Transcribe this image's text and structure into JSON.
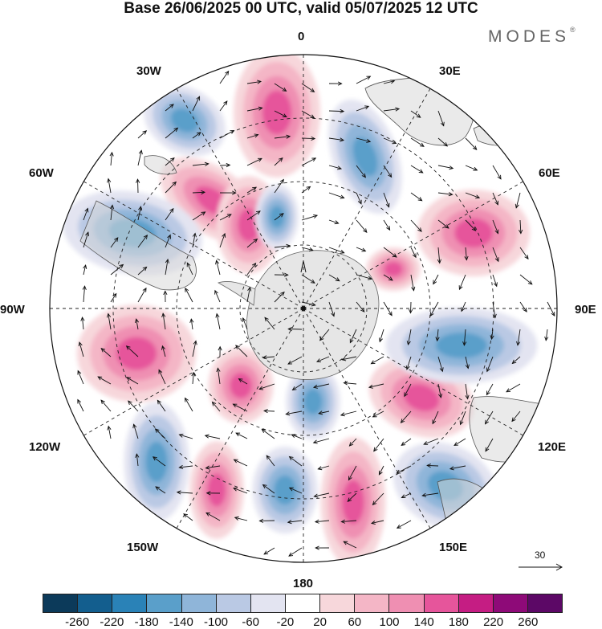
{
  "title": "Base 26/06/2025 00 UTC, valid 05/07/2025 12 UTC",
  "brand": "MODES",
  "brand_mark": "®",
  "longitude_labels": [
    "0",
    "30E",
    "60E",
    "90E",
    "120E",
    "150E",
    "180",
    "150W",
    "120W",
    "90W",
    "60W",
    "30W"
  ],
  "reference_vector_label": "30",
  "colorbar": {
    "ticks": [
      "-260",
      "-220",
      "-180",
      "-140",
      "-100",
      "-60",
      "-20",
      "20",
      "60",
      "100",
      "140",
      "180",
      "220",
      "260"
    ],
    "colors": [
      "#0c3a5a",
      "#135e8e",
      "#2a82b7",
      "#5a9fca",
      "#8fb5d9",
      "#bac9e4",
      "#e3e4f1",
      "#ffffff",
      "#f7d7db",
      "#f4b6c6",
      "#ef8fb2",
      "#e6559b",
      "#c51d83",
      "#8e0a78",
      "#5c0866"
    ]
  },
  "colors": {
    "land": "#e6e6e6",
    "anomaly_negative": "#2a82b7",
    "anomaly_positive": "#e6559b"
  },
  "icons": [
    "north-arrow-icon",
    "reference-vector-icon"
  ]
}
